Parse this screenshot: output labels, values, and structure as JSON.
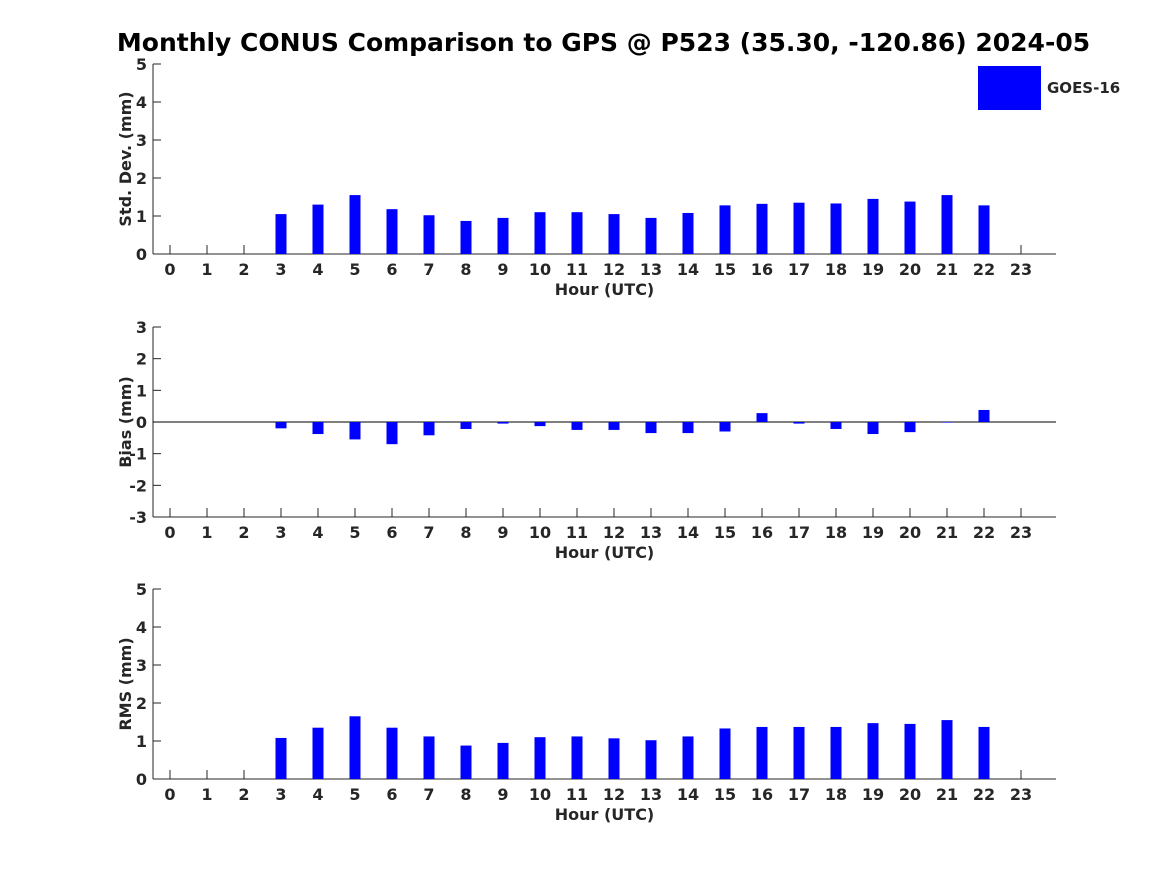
{
  "title": "Monthly CONUS Comparison to GPS @ P523 (35.30, -120.86) 2024-05",
  "legend": {
    "label": "GOES-16",
    "color": "#0000ff"
  },
  "chart_data": [
    {
      "type": "bar",
      "title": "",
      "xlabel": "Hour (UTC)",
      "ylabel": "Std. Dev. (mm)",
      "categories": [
        "0",
        "1",
        "2",
        "3",
        "4",
        "5",
        "6",
        "7",
        "8",
        "9",
        "10",
        "11",
        "12",
        "13",
        "14",
        "15",
        "16",
        "17",
        "18",
        "19",
        "20",
        "21",
        "22",
        "23"
      ],
      "series": [
        {
          "name": "GOES-16",
          "values": [
            null,
            null,
            null,
            1.05,
            1.3,
            1.55,
            1.18,
            1.02,
            0.87,
            0.95,
            1.1,
            1.1,
            1.05,
            0.95,
            1.08,
            1.28,
            1.32,
            1.35,
            1.33,
            1.45,
            1.38,
            1.55,
            1.28,
            null
          ]
        }
      ],
      "ylim": [
        0,
        5
      ],
      "yticks": [
        0,
        1,
        2,
        3,
        4,
        5
      ],
      "legend": "top-right",
      "grid": false
    },
    {
      "type": "bar",
      "title": "",
      "xlabel": "Hour (UTC)",
      "ylabel": "Bias (mm)",
      "categories": [
        "0",
        "1",
        "2",
        "3",
        "4",
        "5",
        "6",
        "7",
        "8",
        "9",
        "10",
        "11",
        "12",
        "13",
        "14",
        "15",
        "16",
        "17",
        "18",
        "19",
        "20",
        "21",
        "22",
        "23"
      ],
      "series": [
        {
          "name": "GOES-16",
          "values": [
            null,
            null,
            null,
            -0.2,
            -0.38,
            -0.55,
            -0.7,
            -0.42,
            -0.22,
            -0.05,
            -0.13,
            -0.25,
            -0.25,
            -0.35,
            -0.35,
            -0.3,
            0.28,
            -0.05,
            -0.22,
            -0.38,
            -0.32,
            0.0,
            0.38,
            null
          ]
        }
      ],
      "ylim": [
        -3,
        3
      ],
      "yticks": [
        -3,
        -2,
        -1,
        0,
        1,
        2,
        3
      ],
      "zero_line": true,
      "grid": false
    },
    {
      "type": "bar",
      "title": "",
      "xlabel": "Hour (UTC)",
      "ylabel": "RMS (mm)",
      "categories": [
        "0",
        "1",
        "2",
        "3",
        "4",
        "5",
        "6",
        "7",
        "8",
        "9",
        "10",
        "11",
        "12",
        "13",
        "14",
        "15",
        "16",
        "17",
        "18",
        "19",
        "20",
        "21",
        "22",
        "23"
      ],
      "series": [
        {
          "name": "GOES-16",
          "values": [
            null,
            null,
            null,
            1.08,
            1.35,
            1.65,
            1.35,
            1.12,
            0.88,
            0.95,
            1.1,
            1.12,
            1.07,
            1.02,
            1.12,
            1.33,
            1.37,
            1.37,
            1.37,
            1.47,
            1.45,
            1.55,
            1.37,
            null
          ]
        }
      ],
      "ylim": [
        0,
        5
      ],
      "yticks": [
        0,
        1,
        2,
        3,
        4,
        5
      ],
      "grid": false
    }
  ]
}
